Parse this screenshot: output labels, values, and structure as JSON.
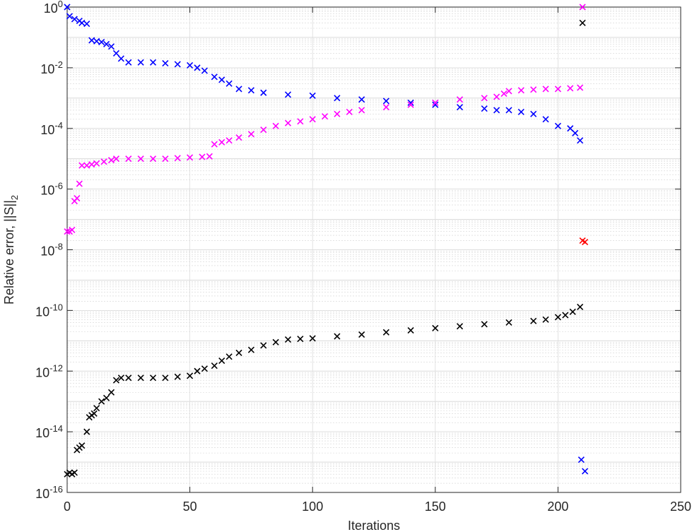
{
  "chart_data": {
    "type": "scatter",
    "xlabel": "Iterations",
    "ylabel": {
      "text": "Relative error, ||S||",
      "sub": "2"
    },
    "log_y": true,
    "grid": true,
    "minor_grid": true,
    "xlim": [
      0,
      250
    ],
    "xticks": [
      0,
      50,
      100,
      150,
      200,
      250
    ],
    "ylim": [
      1e-16,
      1
    ],
    "yticks": [
      {
        "value": 1e-16,
        "label": "10^-16"
      },
      {
        "value": 1e-14,
        "label": "10^-14"
      },
      {
        "value": 1e-12,
        "label": "10^-12"
      },
      {
        "value": 1e-10,
        "label": "10^-10"
      },
      {
        "value": 1e-08,
        "label": "10^-8"
      },
      {
        "value": 1e-06,
        "label": "10^-6"
      },
      {
        "value": 0.0001,
        "label": "10^-4"
      },
      {
        "value": 0.01,
        "label": "10^-2"
      },
      {
        "value": 1,
        "label": "10^0"
      }
    ],
    "series": [
      {
        "color": "#0000ff",
        "x": [
          0,
          1,
          3,
          5,
          6,
          8,
          10,
          12,
          14,
          16,
          18,
          20,
          22,
          25,
          30,
          35,
          40,
          45,
          50,
          53,
          56,
          60,
          63,
          66,
          70,
          75,
          80,
          90,
          100,
          110,
          120,
          130,
          140,
          150,
          160,
          170,
          175,
          180,
          185,
          190,
          195,
          200,
          205,
          207,
          209
        ],
        "values": [
          1,
          0.5,
          0.4,
          0.35,
          0.3,
          0.28,
          0.08,
          0.075,
          0.07,
          0.06,
          0.05,
          0.03,
          0.02,
          0.015,
          0.015,
          0.015,
          0.014,
          0.013,
          0.012,
          0.01,
          0.008,
          0.005,
          0.004,
          0.003,
          0.002,
          0.0018,
          0.0015,
          0.0013,
          0.0012,
          0.001,
          0.0009,
          0.0008,
          0.0007,
          0.0006,
          0.0005,
          0.00045,
          0.0004,
          0.0004,
          0.00035,
          0.0003,
          0.0002,
          0.00012,
          0.0001,
          7e-05,
          4e-05
        ]
      },
      {
        "color": "#ff00ff",
        "x": [
          0,
          1,
          2,
          3,
          4,
          5,
          6,
          8,
          10,
          12,
          15,
          18,
          20,
          25,
          30,
          35,
          40,
          45,
          50,
          55,
          58,
          60,
          63,
          66,
          70,
          75,
          80,
          85,
          90,
          95,
          100,
          105,
          110,
          115,
          120,
          130,
          140,
          150,
          160,
          170,
          175,
          178,
          180,
          185,
          190,
          195,
          200,
          205,
          209
        ],
        "values": [
          4e-08,
          4e-08,
          4.5e-08,
          4e-07,
          5e-07,
          1.5e-06,
          6e-06,
          6e-06,
          6.5e-06,
          7e-06,
          8e-06,
          9e-06,
          1e-05,
          1e-05,
          1e-05,
          1e-05,
          1e-05,
          1.05e-05,
          1.1e-05,
          1.15e-05,
          1.2e-05,
          3e-05,
          3.5e-05,
          4e-05,
          5e-05,
          6.5e-05,
          9e-05,
          0.00012,
          0.00015,
          0.00017,
          0.0002,
          0.00025,
          0.0003,
          0.00035,
          0.0004,
          0.0005,
          0.0006,
          0.0007,
          0.0009,
          0.001,
          0.0011,
          0.0014,
          0.0017,
          0.0018,
          0.0019,
          0.002,
          0.002,
          0.0021,
          0.0022
        ]
      },
      {
        "color": "#000000",
        "x": [
          0,
          1,
          2,
          3,
          4,
          5,
          6,
          8,
          9,
          10,
          11,
          12,
          14,
          16,
          18,
          20,
          22,
          25,
          30,
          35,
          40,
          45,
          50,
          53,
          56,
          60,
          63,
          66,
          70,
          75,
          80,
          85,
          90,
          95,
          100,
          110,
          120,
          130,
          140,
          150,
          160,
          170,
          180,
          190,
          195,
          200,
          203,
          206,
          209
        ],
        "values": [
          4e-16,
          4.5e-16,
          4e-16,
          4.5e-16,
          2.5e-15,
          3e-15,
          3.5e-15,
          1e-14,
          3e-14,
          3.5e-14,
          4e-14,
          6e-14,
          1e-13,
          1.3e-13,
          2e-13,
          5e-13,
          6e-13,
          6e-13,
          6e-13,
          6e-13,
          6e-13,
          6.5e-13,
          7e-13,
          1e-12,
          1.2e-12,
          1.5e-12,
          2.2e-12,
          3e-12,
          4e-12,
          5e-12,
          7e-12,
          9e-12,
          1.1e-11,
          1.15e-11,
          1.2e-11,
          1.4e-11,
          1.6e-11,
          1.9e-11,
          2.2e-11,
          2.6e-11,
          3e-11,
          3.5e-11,
          4e-11,
          4.5e-11,
          5e-11,
          6e-11,
          7e-11,
          9e-11,
          1.3e-10
        ]
      },
      {
        "color": "#ff00ff",
        "x": [
          210
        ],
        "values": [
          1
        ]
      },
      {
        "color": "#000000",
        "x": [
          210
        ],
        "values": [
          0.3
        ]
      },
      {
        "color": "#ff0000",
        "x": [
          210,
          211
        ],
        "values": [
          2e-08,
          1.8e-08
        ]
      },
      {
        "color": "#0000ff",
        "x": [
          209.5,
          211
        ],
        "values": [
          1.2e-15,
          5e-16
        ]
      }
    ]
  }
}
